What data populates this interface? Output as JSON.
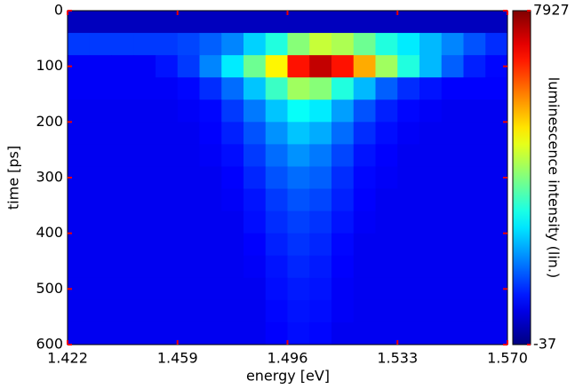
{
  "chart_data": {
    "type": "heatmap",
    "xlabel": "energy [eV]",
    "ylabel": "time [ps]",
    "colorbar_label": "luminescence intensity (lin.)",
    "colormap": "jet",
    "xlim": [
      1.422,
      1.57
    ],
    "xticks": [
      1.422,
      1.459,
      1.496,
      1.533,
      {
        "value": 1.57,
        "label": "1.570"
      }
    ],
    "ylim": [
      600,
      0
    ],
    "yticks": [
      0,
      100,
      200,
      300,
      400,
      500,
      600
    ],
    "clim": [
      -37,
      7927
    ],
    "cticks": [
      -37,
      7927
    ],
    "xbins": [
      1.422,
      1.4294,
      1.4368,
      1.4442,
      1.4516,
      1.459,
      1.4664,
      1.4738,
      1.4812,
      1.4886,
      1.496,
      1.5034,
      1.5108,
      1.5182,
      1.5256,
      1.533,
      1.5404,
      1.5478,
      1.5552,
      1.5626,
      1.57
    ],
    "ybins": [
      0,
      40,
      80,
      120,
      160,
      200,
      240,
      280,
      320,
      360,
      400,
      440,
      480,
      520,
      560,
      600
    ],
    "z": [
      [
        450,
        450,
        450,
        450,
        450,
        450,
        450,
        450,
        450,
        450,
        450,
        450,
        450,
        450,
        450,
        450,
        450,
        450,
        450,
        450
      ],
      [
        1400,
        1400,
        1400,
        1400,
        1400,
        1500,
        1700,
        2000,
        2600,
        3200,
        4000,
        4500,
        4300,
        3800,
        3200,
        2800,
        2400,
        2000,
        1600,
        1300
      ],
      [
        900,
        900,
        900,
        900,
        1100,
        1400,
        2000,
        2800,
        3800,
        5000,
        6800,
        7400,
        6800,
        5600,
        4200,
        3200,
        2400,
        1700,
        1200,
        1000
      ],
      [
        900,
        900,
        900,
        900,
        900,
        1000,
        1300,
        1800,
        2500,
        3400,
        4200,
        4000,
        3200,
        2400,
        1700,
        1300,
        1100,
        950,
        950,
        950
      ],
      [
        850,
        850,
        850,
        850,
        850,
        900,
        1000,
        1400,
        1900,
        2500,
        3000,
        2800,
        2200,
        1600,
        1200,
        1000,
        900,
        850,
        850,
        850
      ],
      [
        850,
        850,
        850,
        850,
        850,
        850,
        950,
        1200,
        1600,
        2100,
        2500,
        2300,
        1800,
        1300,
        1050,
        900,
        850,
        850,
        850,
        850
      ],
      [
        850,
        850,
        850,
        850,
        850,
        850,
        900,
        1050,
        1400,
        1800,
        2100,
        1900,
        1500,
        1100,
        950,
        850,
        850,
        850,
        850,
        850
      ],
      [
        850,
        850,
        850,
        850,
        850,
        850,
        850,
        950,
        1250,
        1600,
        1800,
        1700,
        1300,
        1000,
        900,
        850,
        850,
        850,
        850,
        850
      ],
      [
        850,
        850,
        850,
        850,
        850,
        850,
        850,
        900,
        1100,
        1400,
        1600,
        1500,
        1200,
        950,
        850,
        850,
        850,
        850,
        850,
        850
      ],
      [
        850,
        850,
        850,
        850,
        850,
        850,
        850,
        850,
        1050,
        1300,
        1450,
        1350,
        1100,
        900,
        850,
        850,
        850,
        850,
        850,
        850
      ],
      [
        850,
        850,
        850,
        850,
        850,
        850,
        850,
        850,
        950,
        1200,
        1350,
        1250,
        1000,
        850,
        850,
        850,
        850,
        850,
        850,
        850
      ],
      [
        850,
        850,
        850,
        850,
        850,
        850,
        850,
        850,
        900,
        1100,
        1250,
        1150,
        950,
        850,
        850,
        850,
        850,
        850,
        850,
        850
      ],
      [
        850,
        850,
        850,
        850,
        850,
        850,
        850,
        850,
        850,
        1050,
        1150,
        1100,
        900,
        850,
        850,
        850,
        850,
        850,
        850,
        850
      ],
      [
        850,
        850,
        850,
        850,
        850,
        850,
        850,
        850,
        850,
        1000,
        1100,
        1050,
        900,
        850,
        850,
        850,
        850,
        850,
        850,
        850
      ],
      [
        850,
        850,
        850,
        850,
        850,
        850,
        850,
        850,
        850,
        950,
        1050,
        1000,
        850,
        850,
        850,
        850,
        850,
        850,
        850,
        850
      ]
    ]
  }
}
